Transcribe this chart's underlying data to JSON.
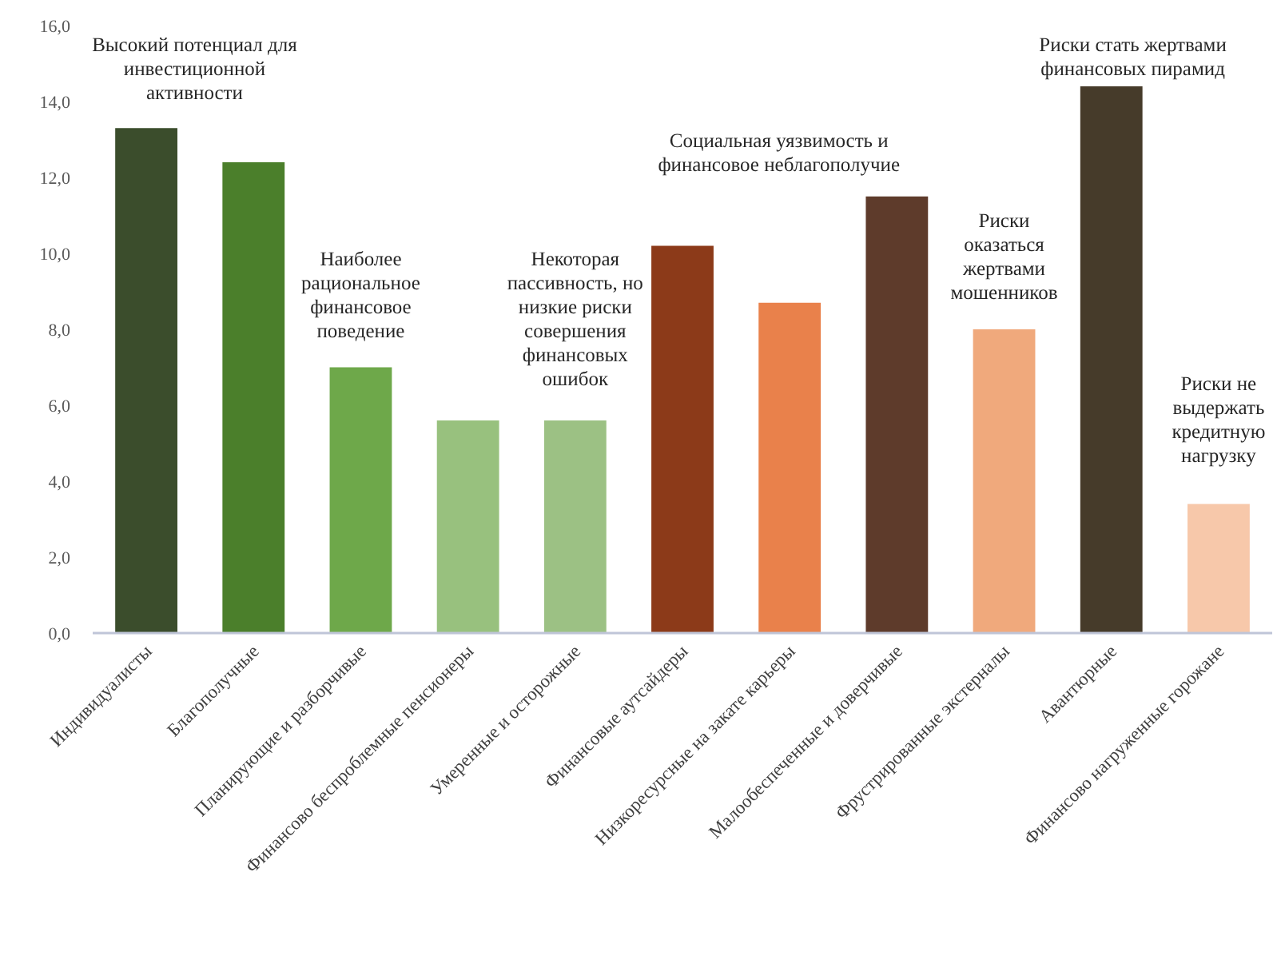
{
  "chart_data": {
    "type": "bar",
    "categories": [
      "Индивидуалисты",
      "Благополучные",
      "Планирующие и разборчивые",
      "Финансово беспроблемные пенсионеры",
      "Умеренные и осторожные",
      "Финансовые аутсайдеры",
      "Низкоресурсные на закате карьеры",
      "Малообеспеченные и доверчивые",
      "Фрустрированные экстерналы",
      "Авантюрные",
      "Финансово нагруженные горожане"
    ],
    "values": [
      13.3,
      12.4,
      7.0,
      5.6,
      5.6,
      10.2,
      8.7,
      11.5,
      8.0,
      14.4,
      3.4
    ],
    "colors": [
      "#3b4d2c",
      "#4b7f2b",
      "#6ea84a",
      "#98c17e",
      "#9cc184",
      "#8c3a19",
      "#e9814b",
      "#5e3b2b",
      "#f0a97c",
      "#463b2a",
      "#f7c8aa"
    ],
    "ylim": [
      0,
      16
    ],
    "yticks": [
      {
        "value": 0,
        "label": "0,0"
      },
      {
        "value": 2,
        "label": "2,0"
      },
      {
        "value": 4,
        "label": "4,0"
      },
      {
        "value": 6,
        "label": "6,0"
      },
      {
        "value": 8,
        "label": "8,0"
      },
      {
        "value": 10,
        "label": "10,0"
      },
      {
        "value": 12,
        "label": "12,0"
      },
      {
        "value": 14,
        "label": "14,0"
      },
      {
        "value": 16,
        "label": "16,0"
      }
    ],
    "annotations": [
      "Высокий потенциал для инвестиционной активности",
      "Наиболее рациональное финансовое поведение",
      "Некоторая пассивность, но низкие риски совершения финансовых ошибок",
      "Социальная уязвимость и финансовое неблагополучие",
      "Риски оказаться жертвами мошенников",
      "Риски стать жертвами финансовых пирамид",
      "Риски не выдержать кредитную нагрузку"
    ]
  }
}
